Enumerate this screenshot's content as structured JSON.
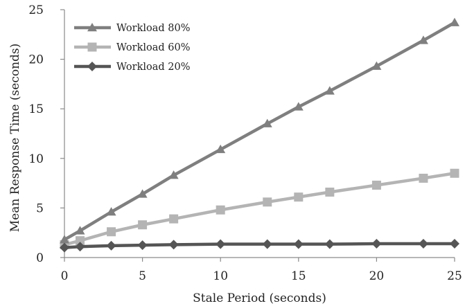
{
  "chart_data": {
    "type": "line",
    "title": "",
    "xlabel": "Stale Period (seconds)",
    "ylabel": "Mean Response Time (seconds)",
    "xlim": [
      0,
      25
    ],
    "ylim": [
      0,
      25
    ],
    "xticks": [
      0,
      5,
      10,
      15,
      20,
      25
    ],
    "yticks": [
      0,
      5,
      10,
      15,
      20,
      25
    ],
    "grid": false,
    "legend_position": "top-left",
    "series": [
      {
        "name": "Workload 80%",
        "color": "#7f7f7f",
        "marker": "triangle",
        "x": [
          0,
          1,
          3,
          5,
          7,
          10,
          13,
          15,
          17,
          20,
          23,
          25
        ],
        "y": [
          1.8,
          2.7,
          4.6,
          6.4,
          8.3,
          10.9,
          13.5,
          15.2,
          16.8,
          19.3,
          21.9,
          23.7
        ]
      },
      {
        "name": "Workload 60%",
        "color": "#b4b4b4",
        "marker": "square",
        "x": [
          0,
          1,
          3,
          5,
          7,
          10,
          13,
          15,
          17,
          20,
          23,
          25
        ],
        "y": [
          1.3,
          1.7,
          2.6,
          3.3,
          3.9,
          4.8,
          5.6,
          6.1,
          6.6,
          7.3,
          8.0,
          8.5
        ]
      },
      {
        "name": "Workload 20%",
        "color": "#555555",
        "marker": "diamond",
        "x": [
          0,
          1,
          3,
          5,
          7,
          10,
          13,
          15,
          17,
          20,
          23,
          25
        ],
        "y": [
          1.0,
          1.1,
          1.2,
          1.25,
          1.3,
          1.35,
          1.35,
          1.35,
          1.35,
          1.4,
          1.4,
          1.4
        ]
      }
    ]
  }
}
